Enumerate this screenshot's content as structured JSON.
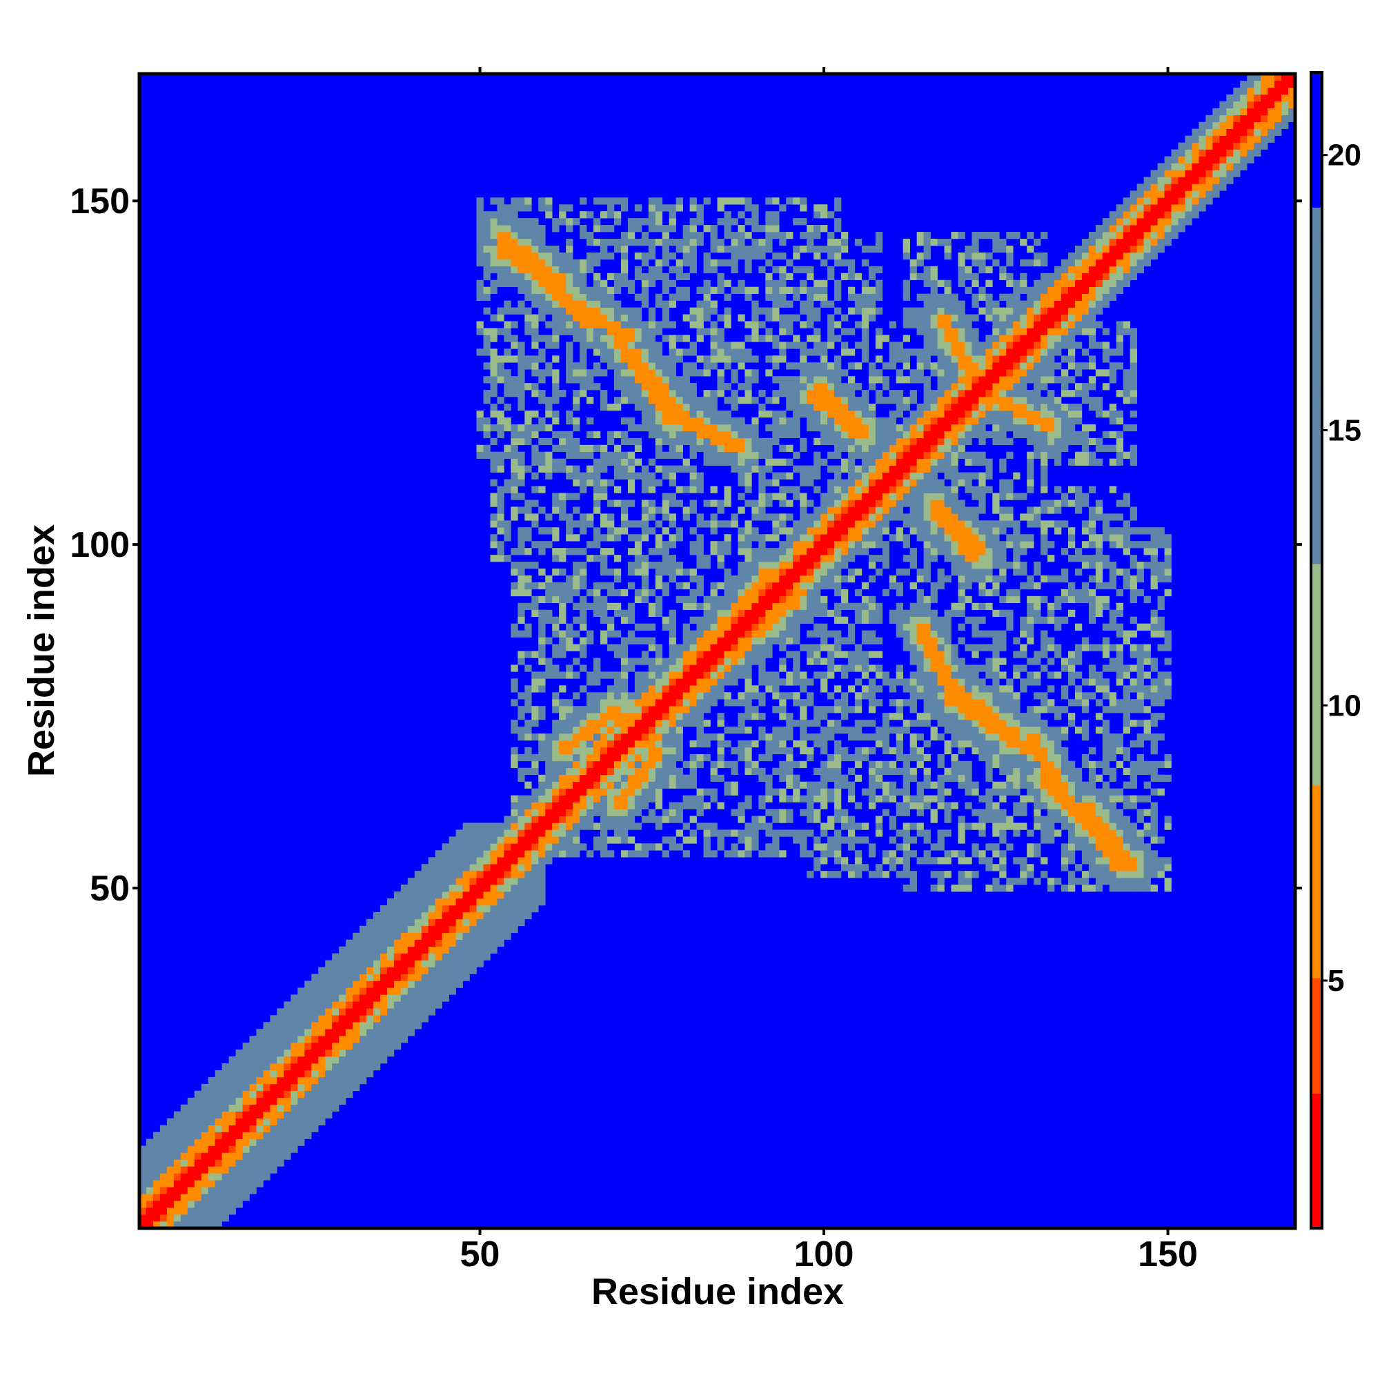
{
  "chart_data": {
    "type": "heatmap",
    "title": "",
    "xlabel": "Residue index",
    "ylabel": "Residue index",
    "xlim": [
      1,
      168
    ],
    "ylim": [
      1,
      168
    ],
    "x_ticks": [
      50,
      100,
      150
    ],
    "y_ticks": [
      50,
      100,
      150
    ],
    "colorbar": {
      "ticks": [
        5,
        10,
        15,
        20
      ],
      "range": [
        0.5,
        21.5
      ],
      "colors": {
        "contact": "#ff0000",
        "near": "#ff8c00",
        "mid_low": "#9bbb8a",
        "mid_high": "#5f86a8",
        "far": "#0000ff"
      }
    },
    "matrix_description_note": "",
    "features": {
      "diagonal": {
        "from": 1,
        "to": 168
      },
      "domain_blocks": [
        {
          "x": [
            52,
            82
          ],
          "y": [
            98,
            150
          ]
        },
        {
          "x": [
            88,
            108
          ],
          "y": [
            98,
            145
          ]
        },
        {
          "x": [
            112,
            132
          ],
          "y": [
            98,
            145
          ]
        },
        {
          "x": [
            55,
            82
          ],
          "y": [
            55,
            102
          ]
        },
        {
          "x": [
            88,
            108
          ],
          "y": [
            55,
            102
          ]
        },
        {
          "x": [
            112,
            150
          ],
          "y": [
            50,
            102
          ]
        }
      ],
      "strands": [
        {
          "x0": 53,
          "y0": 143,
          "x1": 60,
          "y1": 138
        },
        {
          "x0": 60,
          "y0": 138,
          "x1": 66,
          "y1": 132
        },
        {
          "x0": 70,
          "y0": 130,
          "x1": 78,
          "y1": 118
        },
        {
          "x0": 80,
          "y0": 118,
          "x1": 88,
          "y1": 114
        },
        {
          "x0": 98,
          "y0": 122,
          "x1": 105,
          "y1": 116
        },
        {
          "x0": 116,
          "y0": 106,
          "x1": 123,
          "y1": 99
        },
        {
          "x0": 118,
          "y0": 80,
          "x1": 128,
          "y1": 72
        },
        {
          "x0": 130,
          "y0": 72,
          "x1": 136,
          "y1": 62
        },
        {
          "x0": 138,
          "y0": 62,
          "x1": 145,
          "y1": 53
        },
        {
          "x0": 117,
          "y0": 133,
          "x1": 122,
          "y1": 124
        },
        {
          "x0": 62,
          "y0": 70,
          "x1": 70,
          "y1": 76
        },
        {
          "x0": 84,
          "y0": 86,
          "x1": 92,
          "y1": 96
        }
      ]
    }
  }
}
